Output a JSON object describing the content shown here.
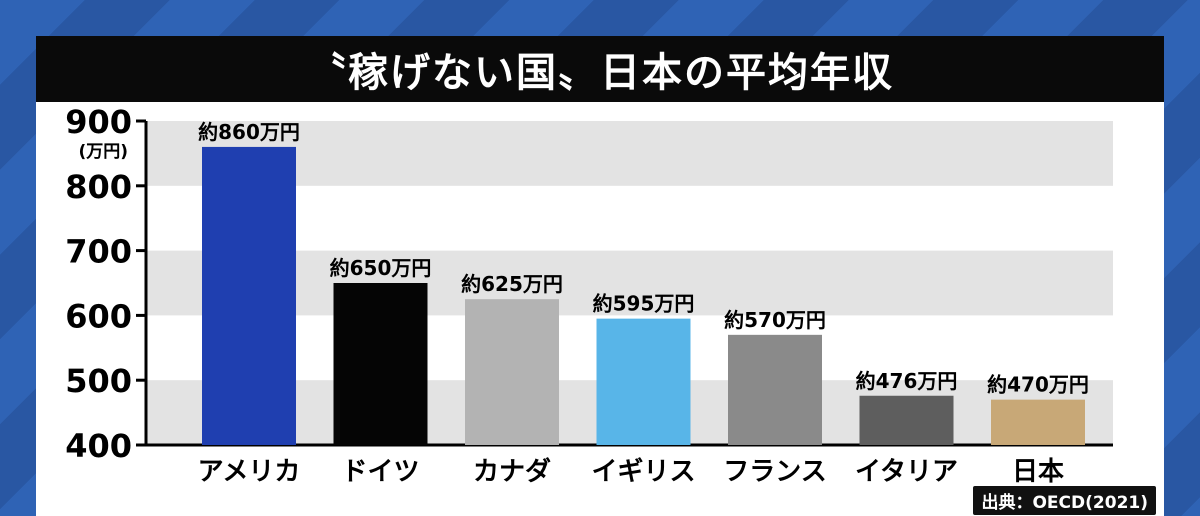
{
  "title": "〝稼げない国〟日本の平均年収",
  "source": "出典：OECD(2021)",
  "chart_data": {
    "type": "bar",
    "title": "〝稼げない国〟日本の平均年収",
    "ylabel_unit": "(万円)",
    "ylim": [
      400,
      900
    ],
    "yticks": [
      400,
      500,
      600,
      700,
      800,
      900
    ],
    "grid": "horizontal bands",
    "categories": [
      "アメリカ",
      "ドイツ",
      "カナダ",
      "イギリス",
      "フランス",
      "イタリア",
      "日本"
    ],
    "values": [
      860,
      650,
      625,
      595,
      570,
      476,
      470
    ],
    "value_labels": [
      "約860万円",
      "約650万円",
      "約625万円",
      "約595万円",
      "約570万円",
      "約476万円",
      "約470万円"
    ],
    "colors": [
      "#1f3fb0",
      "#050505",
      "#b3b3b3",
      "#58b5e8",
      "#8a8a8a",
      "#5e5e5e",
      "#c8a877"
    ]
  }
}
